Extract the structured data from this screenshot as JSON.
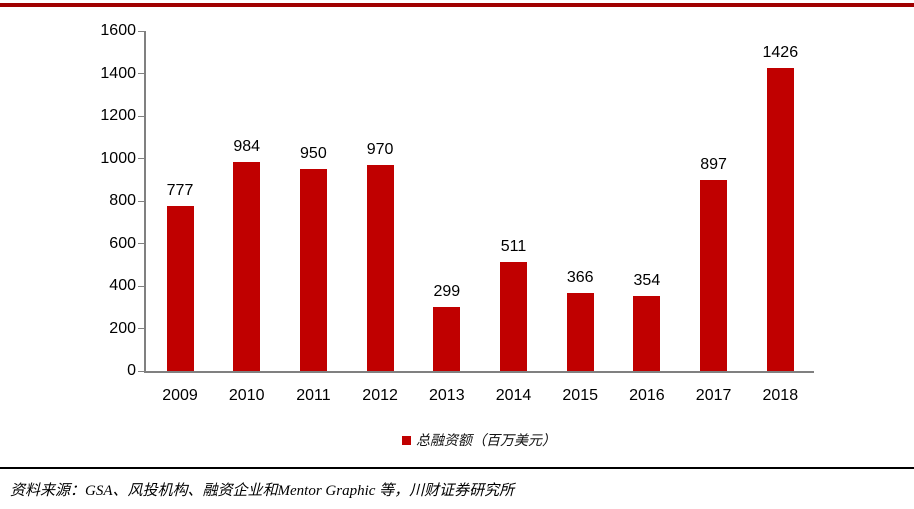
{
  "chart_data": {
    "type": "bar",
    "title": "",
    "categories": [
      "2009",
      "2010",
      "2011",
      "2012",
      "2013",
      "2014",
      "2015",
      "2016",
      "2017",
      "2018"
    ],
    "values": [
      777,
      984,
      950,
      970,
      299,
      511,
      366,
      354,
      897,
      1426
    ],
    "legend": "总融资额（百万美元）",
    "xlabel": "",
    "ylabel": "",
    "ylim": [
      0,
      1600
    ],
    "ytick_step": 200,
    "grid": false,
    "legend_position": "bottom",
    "bar_color": "#c00000",
    "legend_marker_color": "#c00000",
    "axis_color": "#808080"
  },
  "decor": {
    "top_rule_color": "#a00000",
    "footer_rule_color": "#000000"
  },
  "footer": {
    "source_text": "资料来源：GSA、风投机构、融资企业和Mentor Graphic 等，川财证券研究所"
  }
}
